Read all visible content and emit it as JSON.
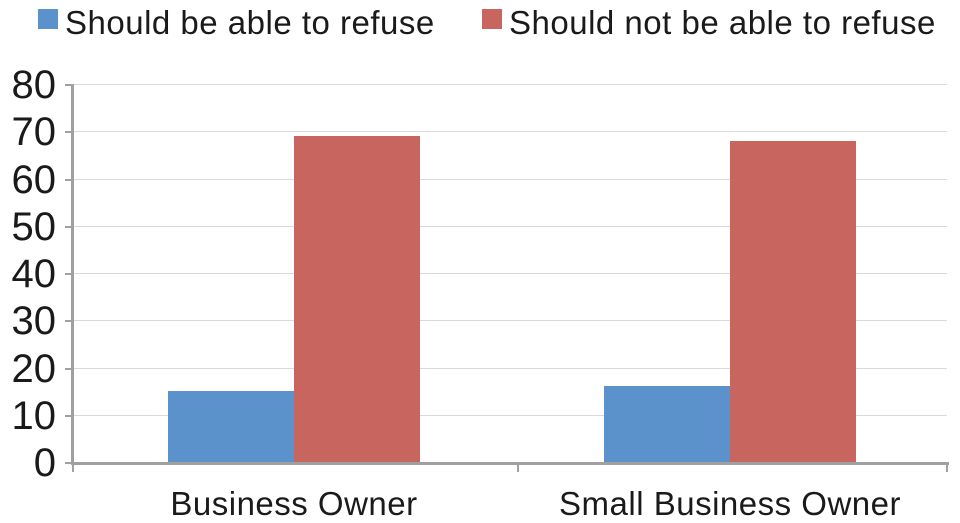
{
  "chart_data": {
    "type": "bar",
    "title": "",
    "categories": [
      "Business Owner",
      "Small Business Owner"
    ],
    "series": [
      {
        "name": "Should be able to refuse",
        "color": "#5B92CB",
        "values": [
          15,
          16
        ]
      },
      {
        "name": "Should not be able to refuse",
        "color": "#C9655F",
        "values": [
          69,
          68
        ]
      }
    ],
    "ylim": [
      0,
      80
    ],
    "ytick_step": 10,
    "ytick_labels": [
      "0",
      "10",
      "20",
      "30",
      "40",
      "50",
      "60",
      "70",
      "80"
    ],
    "xlabel": "",
    "ylabel": "",
    "grid": true,
    "legend_position": "top",
    "colors": {
      "axis": "#A0A0A0",
      "gridline": "#D9D9D9",
      "text": "#1A1A1A",
      "background": "#FFFFFF"
    }
  }
}
